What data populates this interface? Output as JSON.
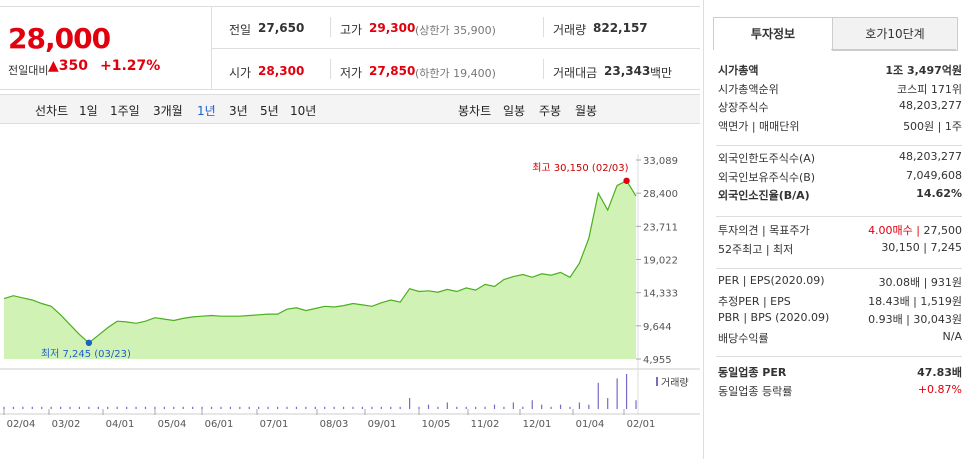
{
  "quote": {
    "price": "28,000",
    "change_label": "전일대비",
    "change_arrow": "▲",
    "change_value": "350",
    "change_pct": "+1.27%",
    "prev_close_label": "전일",
    "prev_close": "27,650",
    "high_label": "고가",
    "high": "29,300",
    "upper_limit": "(상한가 35,900)",
    "volume_label": "거래량",
    "volume": "822,157",
    "open_label": "시가",
    "open": "28,300",
    "low_label": "저가",
    "low": "27,850",
    "lower_limit": "(하한가 19,400)",
    "amount_label": "거래대금",
    "amount": "23,343",
    "amount_unit": "백만"
  },
  "periods": {
    "line_chart": "선차트",
    "items": [
      "1일",
      "1주일",
      "3개월",
      "1년",
      "3년",
      "5년",
      "10년"
    ],
    "selected": "1년",
    "candle_chart": "봉차트",
    "candle_items": [
      "일봉",
      "주봉",
      "월봉"
    ]
  },
  "chart_data": {
    "type": "area",
    "yticks": [
      "33,089",
      "28,400",
      "23,711",
      "19,022",
      "14,333",
      "9,644",
      "4,955"
    ],
    "ylim": [
      4955,
      33089
    ],
    "xticks": [
      "02/04",
      "03/02",
      "04/01",
      "05/04",
      "06/01",
      "07/01",
      "08/03",
      "09/01",
      "10/05",
      "11/02",
      "12/01",
      "01/04",
      "02/01"
    ],
    "values": [
      13500,
      13900,
      13600,
      13300,
      12800,
      12400,
      11200,
      9800,
      8400,
      7245,
      8300,
      9400,
      10300,
      10200,
      10000,
      10300,
      10800,
      10600,
      10400,
      10700,
      10900,
      11000,
      11100,
      11000,
      11000,
      11000,
      11100,
      11200,
      11300,
      11300,
      12000,
      12200,
      11800,
      12100,
      12400,
      12300,
      12500,
      12800,
      12600,
      12400,
      12900,
      13300,
      13000,
      14900,
      14500,
      14600,
      14400,
      14800,
      14500,
      15000,
      14700,
      15500,
      15200,
      16200,
      16600,
      16900,
      16500,
      17000,
      16800,
      17200,
      16500,
      18500,
      22000,
      28400,
      26000,
      29500,
      30150,
      28000
    ],
    "max_label": "최고 30,150 (02/03)",
    "min_label": "최저 7,245 (03/23)",
    "volume_label": "거래량",
    "volume_values": [
      1,
      1,
      1,
      1,
      1,
      1,
      1,
      1,
      1,
      1,
      1,
      1,
      1,
      1,
      1,
      1,
      1,
      1,
      1,
      1,
      1,
      1,
      1,
      1,
      1,
      1,
      1,
      1,
      1,
      1,
      1,
      1,
      1,
      1,
      1,
      1,
      1,
      1,
      1,
      1,
      1,
      1,
      1,
      5,
      1,
      2,
      1,
      3,
      1,
      1,
      1,
      1,
      2,
      1,
      3,
      1,
      4,
      2,
      1,
      2,
      1,
      3,
      2,
      12,
      5,
      14,
      16,
      4
    ],
    "line_color": "#4caf1e",
    "fill_color": "#c9f0a8",
    "volume_color": "#7b68c8"
  },
  "info": {
    "tab_active": "투자정보",
    "tab_other": "호가10단계",
    "rows1": [
      {
        "l": "시가총액",
        "r": "1조 3,497억원",
        "bold": true
      },
      {
        "l": "시가총액순위",
        "r": "코스피 171위"
      },
      {
        "l": "상장주식수",
        "r": "48,203,277"
      },
      {
        "l": "액면가 | 매매단위",
        "r": "500원 | 1주"
      }
    ],
    "rows2": [
      {
        "l": "외국인한도주식수(A)",
        "r": "48,203,277"
      },
      {
        "l": "외국인보유주식수(B)",
        "r": "7,049,608"
      },
      {
        "l": "외국인소진율(B/A)",
        "r": "14.62%",
        "bold": true
      }
    ],
    "rows3": [
      {
        "l": "투자의견 | 목표주가",
        "r_red": "4.00매수",
        "r": "27,500"
      },
      {
        "l": "52주최고 | 최저",
        "r": "30,150 | 7,245"
      }
    ],
    "rows4": [
      {
        "l": "PER | EPS(2020.09)",
        "r": "30.08배 | 931원"
      },
      {
        "l": "추정PER | EPS",
        "r": "18.43배 | 1,519원"
      },
      {
        "l": "PBR | BPS (2020.09)",
        "r": "0.93배 | 30,043원"
      },
      {
        "l": "배당수익률",
        "r": "N/A"
      }
    ],
    "rows5": [
      {
        "l": "동일업종 PER",
        "r": "47.83배",
        "bold": true
      },
      {
        "l": "동일업종 등락률",
        "r": "+0.87%"
      }
    ]
  }
}
